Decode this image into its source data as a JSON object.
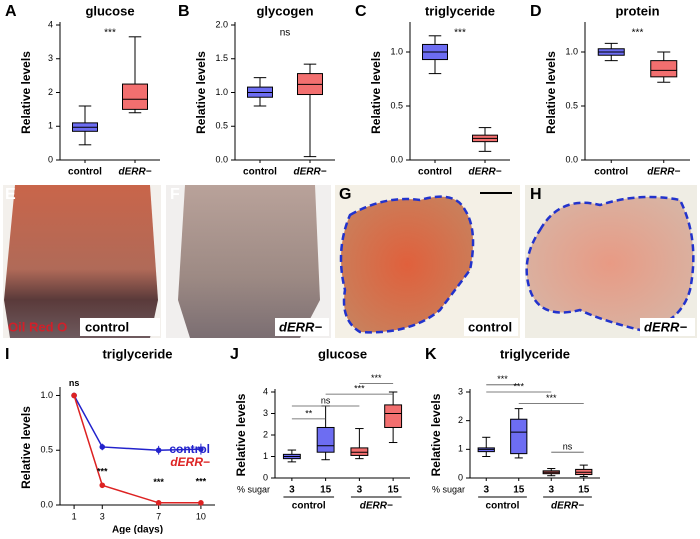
{
  "chart_data": [
    {
      "type": "box",
      "letter": "A",
      "title": "glucose",
      "ylabel": "Relative levels",
      "categories": [
        "control",
        "dERR−"
      ],
      "colors": [
        "#6d6df2",
        "#f26f6f"
      ],
      "boxes": [
        {
          "min": 0.45,
          "q1": 0.85,
          "median": 0.97,
          "q3": 1.1,
          "max": 1.6
        },
        {
          "min": 1.4,
          "q1": 1.5,
          "median": 1.8,
          "q3": 2.25,
          "max": 3.65
        }
      ],
      "ylim": [
        0,
        4
      ],
      "yticks": [
        0,
        1,
        2,
        3,
        4
      ],
      "significance": [
        "***"
      ]
    },
    {
      "type": "box",
      "letter": "B",
      "title": "glycogen",
      "ylabel": "Relative levels",
      "categories": [
        "control",
        "dERR−"
      ],
      "colors": [
        "#6d6df2",
        "#f26f6f"
      ],
      "boxes": [
        {
          "min": 0.8,
          "q1": 0.93,
          "median": 1.0,
          "q3": 1.08,
          "max": 1.22
        },
        {
          "min": 0.05,
          "q1": 0.97,
          "median": 1.12,
          "q3": 1.28,
          "max": 1.42
        }
      ],
      "ylim": [
        0,
        2
      ],
      "yticks": [
        {
          "value": 0,
          "label": "0.0"
        },
        {
          "value": 0.5,
          "label": "0.5"
        },
        {
          "value": 1,
          "label": "1.0"
        },
        {
          "value": 1.5,
          "label": "1.5"
        },
        {
          "value": 2,
          "label": "2.0"
        }
      ],
      "significance": [
        "ns"
      ]
    },
    {
      "type": "box",
      "letter": "C",
      "title": "triglyceride",
      "ylabel": "Relative levels",
      "categories": [
        "control",
        "dERR−"
      ],
      "colors": [
        "#6d6df2",
        "#f26f6f"
      ],
      "boxes": [
        {
          "min": 0.8,
          "q1": 0.93,
          "median": 1.0,
          "q3": 1.07,
          "max": 1.15
        },
        {
          "min": 0.08,
          "q1": 0.17,
          "median": 0.2,
          "q3": 0.23,
          "max": 0.3
        }
      ],
      "ylim": [
        0,
        1.25
      ],
      "yticks": [
        {
          "value": 0,
          "label": "0.0"
        },
        {
          "value": 0.5,
          "label": "0.5"
        },
        {
          "value": 1,
          "label": "1.0"
        }
      ],
      "significance": [
        "***"
      ]
    },
    {
      "type": "box",
      "letter": "D",
      "title": "protein",
      "ylabel": "Relative levels",
      "categories": [
        "control",
        "dERR−"
      ],
      "colors": [
        "#6d6df2",
        "#f26f6f"
      ],
      "boxes": [
        {
          "min": 0.92,
          "q1": 0.97,
          "median": 1.0,
          "q3": 1.03,
          "max": 1.08
        },
        {
          "min": 0.72,
          "q1": 0.77,
          "median": 0.83,
          "q3": 0.92,
          "max": 1.0
        }
      ],
      "ylim": [
        0,
        1.25
      ],
      "yticks": [
        {
          "value": 0,
          "label": "0.0"
        },
        {
          "value": 0.5,
          "label": "0.5"
        },
        {
          "value": 1,
          "label": "1.0"
        }
      ],
      "significance": [
        "***"
      ]
    },
    {
      "type": "line",
      "letter": "I",
      "title": "triglyceride",
      "ylabel": "Relative levels",
      "xlabel": "Age (days)",
      "x": [
        1,
        3,
        7,
        10
      ],
      "xlim": [
        0,
        11
      ],
      "xticks": [
        1,
        3,
        7,
        10
      ],
      "ylim": [
        0,
        1.05
      ],
      "yticks": [
        {
          "value": 0,
          "label": "0.0"
        },
        {
          "value": 0.5,
          "label": "0.5"
        },
        {
          "value": 1,
          "label": "1.0"
        }
      ],
      "series": [
        {
          "name": "control",
          "color": "#2222cc",
          "values": [
            1.0,
            0.53,
            0.5,
            0.51
          ],
          "errors": [
            0.02,
            0.03,
            0.04,
            0.05
          ]
        },
        {
          "name": "dERR−",
          "color": "#dd2222",
          "values": [
            1.0,
            0.18,
            0.02,
            0.02
          ],
          "errors": [
            0.02,
            0.02,
            0.01,
            0.01
          ]
        }
      ],
      "annotations": [
        "ns",
        "***",
        "***",
        "***"
      ]
    },
    {
      "type": "box",
      "letter": "J",
      "title": "glucose",
      "ylabel": "Relative levels",
      "xlabel": "% sugar",
      "categories": [
        "3",
        "15",
        "3",
        "15"
      ],
      "groups": [
        "control",
        "dERR−"
      ],
      "colors": [
        "#6d6df2",
        "#6d6df2",
        "#f26f6f",
        "#f26f6f"
      ],
      "boxes": [
        {
          "min": 0.75,
          "q1": 0.9,
          "median": 1.0,
          "q3": 1.1,
          "max": 1.3
        },
        {
          "min": 0.85,
          "q1": 1.2,
          "median": 1.5,
          "q3": 2.35,
          "max": 3.35
        },
        {
          "min": 0.9,
          "q1": 1.05,
          "median": 1.2,
          "q3": 1.4,
          "max": 2.3
        },
        {
          "min": 1.65,
          "q1": 2.35,
          "median": 3.0,
          "q3": 3.4,
          "max": 4.0
        }
      ],
      "ylim": [
        0,
        4
      ],
      "yticks": [
        0,
        1,
        2,
        3,
        4
      ],
      "significance": [
        "**",
        "ns",
        "***",
        "***"
      ]
    },
    {
      "type": "box",
      "letter": "K",
      "title": "triglyceride",
      "ylabel": "Relative levels",
      "xlabel": "% sugar",
      "categories": [
        "3",
        "15",
        "3",
        "15"
      ],
      "groups": [
        "control",
        "dERR−"
      ],
      "colors": [
        "#6d6df2",
        "#6d6df2",
        "#f26f6f",
        "#f26f6f"
      ],
      "boxes": [
        {
          "min": 0.75,
          "q1": 0.92,
          "median": 1.0,
          "q3": 1.05,
          "max": 1.42
        },
        {
          "min": 0.7,
          "q1": 0.85,
          "median": 1.6,
          "q3": 2.05,
          "max": 2.42
        },
        {
          "min": 0.08,
          "q1": 0.15,
          "median": 0.2,
          "q3": 0.25,
          "max": 0.33
        },
        {
          "min": 0.05,
          "q1": 0.12,
          "median": 0.2,
          "q3": 0.3,
          "max": 0.45
        }
      ],
      "ylim": [
        0,
        3
      ],
      "yticks": [
        0,
        1,
        2,
        3
      ],
      "significance": [
        "***",
        "***",
        "***",
        "ns"
      ]
    }
  ],
  "image_panels": [
    {
      "letter": "E",
      "texts": [
        "Oil Red O",
        "control"
      ]
    },
    {
      "letter": "F",
      "texts": [
        "dERR−"
      ]
    },
    {
      "letter": "G",
      "texts": [
        "control"
      ]
    },
    {
      "letter": "H",
      "texts": [
        "dERR−"
      ]
    }
  ]
}
